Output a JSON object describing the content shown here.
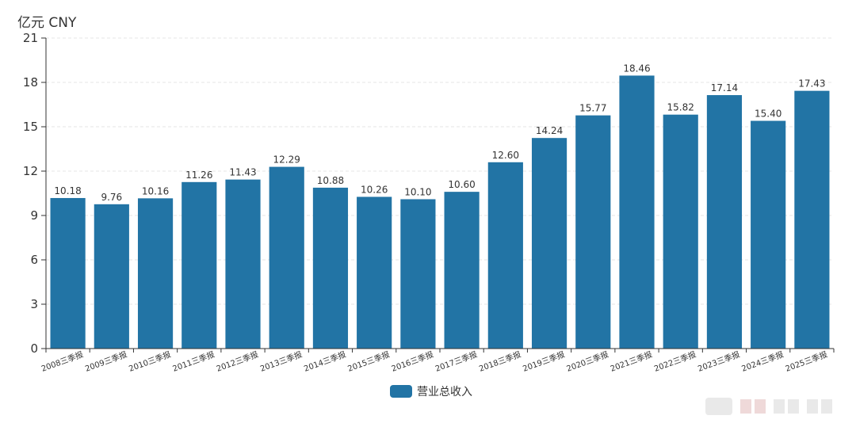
{
  "unit_label": "亿元  CNY",
  "legend": {
    "label": "营业总收入",
    "color": "#2274A5"
  },
  "colors": {
    "bar": "#2274A5",
    "axis": "#333333",
    "grid": "#e6e6e6"
  },
  "chart_data": {
    "type": "bar",
    "categories": [
      "2008三季报",
      "2009三季报",
      "2010三季报",
      "2011三季报",
      "2012三季报",
      "2013三季报",
      "2014三季报",
      "2015三季报",
      "2016三季报",
      "2017三季报",
      "2018三季报",
      "2019三季报",
      "2020三季报",
      "2021三季报",
      "2022三季报",
      "2023三季报",
      "2024三季报",
      "2025三季报"
    ],
    "series": [
      {
        "name": "营业总收入",
        "values": [
          10.18,
          9.76,
          10.16,
          11.26,
          11.43,
          12.29,
          10.88,
          10.26,
          10.1,
          10.6,
          12.6,
          14.24,
          15.77,
          18.46,
          15.82,
          17.14,
          15.4,
          17.43
        ]
      }
    ],
    "data_labels": [
      "10.18",
      "9.76",
      "10.16",
      "11.26",
      "11.43",
      "12.29",
      "10.88",
      "10.26",
      "10.10",
      "10.60",
      "12.60",
      "14.24",
      "15.77",
      "18.46",
      "15.82",
      "17.14",
      "15.40",
      "17.43"
    ],
    "yticks": [
      "0",
      "3",
      "6",
      "9",
      "12",
      "15",
      "18",
      "21"
    ],
    "ylim": [
      0,
      21
    ],
    "grid": true,
    "legend_position": "bottom-center"
  }
}
